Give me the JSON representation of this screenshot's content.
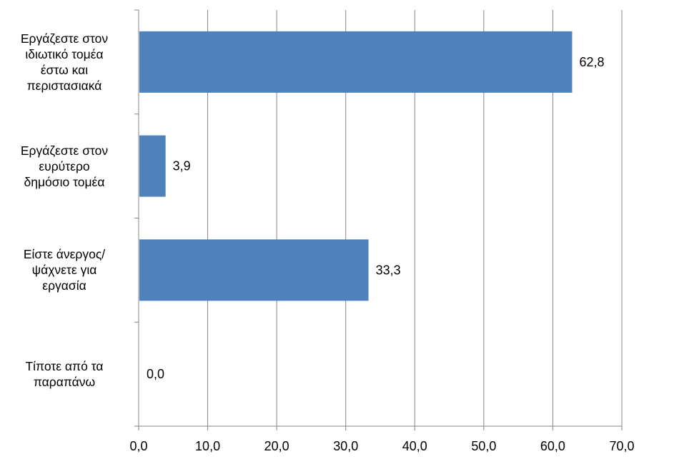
{
  "chart_data": {
    "type": "bar",
    "orientation": "horizontal",
    "title": "",
    "xlabel": "",
    "ylabel": "",
    "categories": [
      "Εργάζεστε στον\nιδιωτικό τομέα\nέστω και\nπεριστασιακά",
      "Εργάζεστε στον\nευρύτερο\nδημόσιο τομέα",
      "Είστε άνεργος/\nψάχνετε για\nεργασία",
      "Τίποτε από τα\nπαραπάνω"
    ],
    "values": [
      62.8,
      3.9,
      33.3,
      0.0
    ],
    "value_labels": [
      "62,8",
      "3,9",
      "33,3",
      "0,0"
    ],
    "x_ticks": [
      "0,0",
      "10,0",
      "20,0",
      "30,0",
      "40,0",
      "50,0",
      "60,0",
      "70,0"
    ],
    "xlim": [
      0,
      70
    ],
    "grid": "vertical",
    "legend": "none",
    "bar_color": "#4f81bd"
  }
}
